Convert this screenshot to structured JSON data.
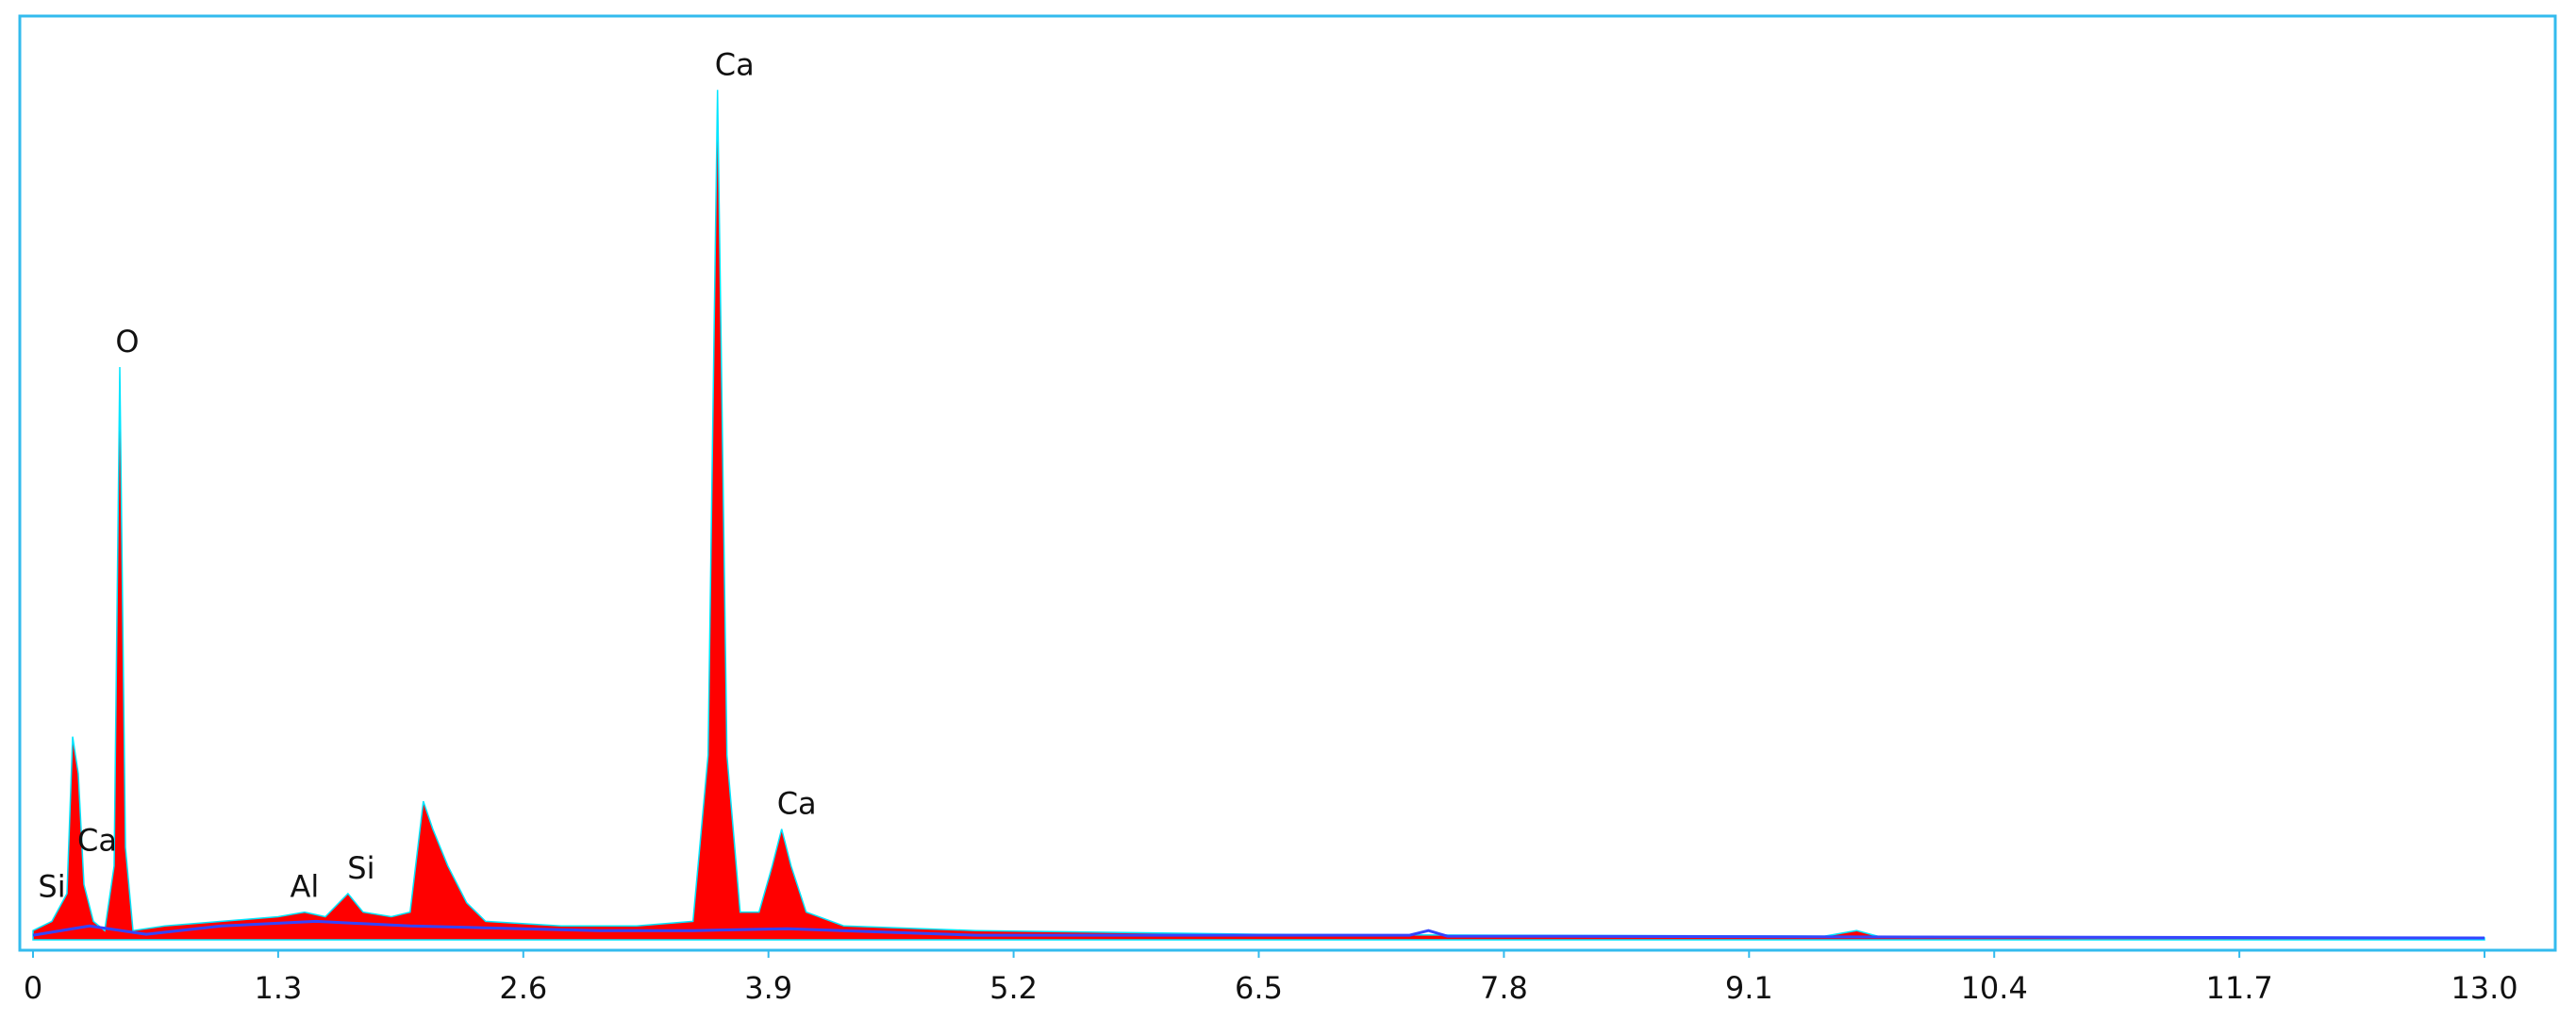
{
  "chart_data": {
    "type": "area",
    "xlim": [
      0,
      13
    ],
    "ylim": [
      0,
      100
    ],
    "xticks": [
      0,
      1.3,
      2.6,
      3.9,
      5.2,
      6.5,
      7.8,
      9.1,
      10.4,
      11.7,
      {
        "value": 13,
        "label": "13.0"
      }
    ],
    "series": [
      {
        "color": "#ff0000",
        "fill": true,
        "x": [
          0,
          0.1,
          0.18,
          0.21,
          0.24,
          0.27,
          0.32,
          0.38,
          0.43,
          0.46,
          0.49,
          0.53,
          0.7,
          1.0,
          1.3,
          1.44,
          1.55,
          1.67,
          1.75,
          1.9,
          2.0,
          2.07,
          2.12,
          2.2,
          2.3,
          2.4,
          2.8,
          3.2,
          3.5,
          3.58,
          3.63,
          3.68,
          3.75,
          3.85,
          3.92,
          3.97,
          4.02,
          4.1,
          4.3,
          5.0,
          6.5,
          7.8,
          9.5,
          9.67,
          9.8,
          11,
          13
        ],
        "values": [
          1,
          2,
          5,
          22,
          18,
          6,
          2,
          1,
          8,
          62,
          10,
          1,
          1.5,
          2,
          2.5,
          3,
          2.5,
          5,
          3,
          2.5,
          3,
          15,
          12,
          8,
          4,
          2,
          1.5,
          1.5,
          2,
          20,
          92,
          20,
          3,
          3,
          8,
          12,
          8,
          3,
          1.5,
          1,
          0.6,
          0.5,
          0.4,
          1,
          0.3,
          0.2,
          0.2
        ]
      },
      {
        "color": "#3344ff",
        "fill": false,
        "x": [
          0,
          0.3,
          0.6,
          1.0,
          1.5,
          2.0,
          3.0,
          3.5,
          4.0,
          5.0,
          7.3,
          7.4,
          7.5,
          13
        ],
        "values": [
          0.5,
          1.5,
          0.6,
          1.5,
          2,
          1.5,
          1,
          1,
          1.2,
          0.5,
          0.5,
          1,
          0.4,
          0.2
        ]
      }
    ],
    "annotations": [
      {
        "text": "Si",
        "x": 0.1,
        "y": 3
      },
      {
        "text": "Ca",
        "x": 0.34,
        "y": 8
      },
      {
        "text": "O",
        "x": 0.5,
        "y": 62
      },
      {
        "text": "Al",
        "x": 1.44,
        "y": 3
      },
      {
        "text": "Si",
        "x": 1.74,
        "y": 5
      },
      {
        "text": "Ca",
        "x": 3.72,
        "y": 92
      },
      {
        "text": "Ca",
        "x": 4.05,
        "y": 12
      }
    ]
  }
}
